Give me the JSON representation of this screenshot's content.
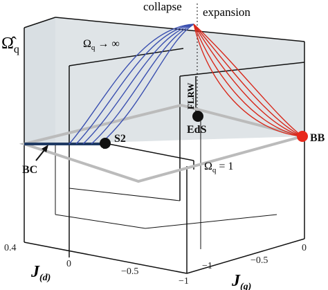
{
  "header": {
    "left": "collapse",
    "right": "expansion"
  },
  "axis_label": {
    "symbol": "Ω̂",
    "subscript": "q"
  },
  "labels": {
    "limit": {
      "symbol": "Ω",
      "subscript": "q",
      "rest": " → ∞"
    },
    "flrw": "FLRW",
    "eds": "EdS",
    "s2": "S2",
    "bc": "BC",
    "bb": "BB",
    "unity": {
      "symbol": "Ω",
      "subscript": "q",
      "rest": " = 1"
    }
  },
  "jd_axis": {
    "ticks": [
      "0.4",
      "0",
      "−0.5",
      "−1"
    ],
    "symbol": "J",
    "subscript": "(d)"
  },
  "jg_axis": {
    "ticks": [
      "−1",
      "−0.5",
      "0"
    ],
    "symbol": "J",
    "subscript": "(g)"
  }
}
